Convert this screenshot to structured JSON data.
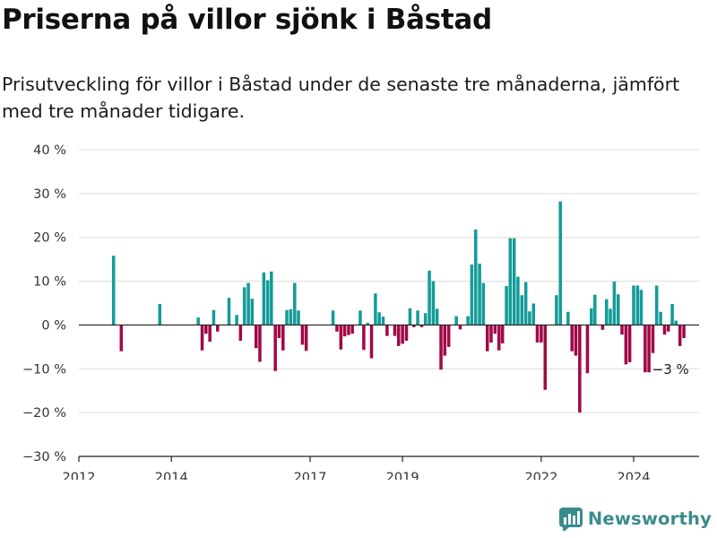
{
  "header": {
    "title": "Priserna på villor sjönk i Båstad",
    "subtitle": "Prisutveckling för villor i Båstad under de senaste tre månaderna, jämfört med tre månader tidigare."
  },
  "footer": {
    "brand": "Newsworthy"
  },
  "colors": {
    "positive": "#139c98",
    "negative": "#a10946",
    "grid": "#dcdcdc",
    "axis": "#222222",
    "text": "#333333"
  },
  "chart_data": {
    "type": "bar",
    "x_type": "date",
    "ylim": [
      -30,
      40
    ],
    "yticks": [
      40,
      30,
      20,
      10,
      0,
      -10,
      -20,
      -30
    ],
    "ytick_labels": [
      "40 %",
      "30 %",
      "20 %",
      "10 %",
      "0 %",
      "−10 %",
      "−20 %",
      "−30 %"
    ],
    "xticks": [
      "2012-01-01",
      "2014-01-01",
      "2017-01-01",
      "2019-01-01",
      "2022-01-01",
      "2024-01-01"
    ],
    "xtick_labels": [
      "2012",
      "2014",
      "2017",
      "2019",
      "2022",
      "2024"
    ],
    "xlim": [
      "2012-01-01",
      "2025-06-01"
    ],
    "grid": true,
    "annotation": {
      "label": "−3 %",
      "x": "2024-10-01",
      "y": -3
    },
    "series": [
      {
        "values": [
          [
            "2012-10-01",
            15.8
          ],
          [
            "2012-12-01",
            -6
          ],
          [
            "2013-10-01",
            4.8
          ],
          [
            "2014-08-01",
            1.7
          ],
          [
            "2014-09-01",
            -5.8
          ],
          [
            "2014-10-01",
            -2
          ],
          [
            "2014-11-01",
            -3.8
          ],
          [
            "2014-12-01",
            3.4
          ],
          [
            "2015-01-01",
            -1.5
          ],
          [
            "2015-04-01",
            6.2
          ],
          [
            "2015-06-01",
            2.3
          ],
          [
            "2015-07-01",
            -3.6
          ],
          [
            "2015-08-01",
            8.6
          ],
          [
            "2015-09-01",
            9.6
          ],
          [
            "2015-10-01",
            6
          ],
          [
            "2015-11-01",
            -5.3
          ],
          [
            "2015-12-01",
            -8.4
          ],
          [
            "2016-01-01",
            12
          ],
          [
            "2016-02-01",
            10.2
          ],
          [
            "2016-03-01",
            12.2
          ],
          [
            "2016-04-01",
            -10.5
          ],
          [
            "2016-05-01",
            -3
          ],
          [
            "2016-06-01",
            -5.8
          ],
          [
            "2016-07-01",
            3.4
          ],
          [
            "2016-08-01",
            3.6
          ],
          [
            "2016-09-01",
            9.6
          ],
          [
            "2016-10-01",
            3.3
          ],
          [
            "2016-11-01",
            -4.5
          ],
          [
            "2016-12-01",
            -5.9
          ],
          [
            "2017-07-01",
            3.3
          ],
          [
            "2017-08-01",
            -1.5
          ],
          [
            "2017-09-01",
            -5.6
          ],
          [
            "2017-10-01",
            -2.6
          ],
          [
            "2017-11-01",
            -2.3
          ],
          [
            "2017-12-01",
            -2
          ],
          [
            "2018-02-01",
            3.3
          ],
          [
            "2018-03-01",
            -5.7
          ],
          [
            "2018-04-01",
            0.5
          ],
          [
            "2018-05-01",
            -7.6
          ],
          [
            "2018-06-01",
            7.2
          ],
          [
            "2018-07-01",
            2.9
          ],
          [
            "2018-08-01",
            1.9
          ],
          [
            "2018-09-01",
            -2.5
          ],
          [
            "2018-11-01",
            -2.5
          ],
          [
            "2018-12-01",
            -4.8
          ],
          [
            "2019-01-01",
            -4.3
          ],
          [
            "2019-02-01",
            -3.6
          ],
          [
            "2019-03-01",
            3.8
          ],
          [
            "2019-04-01",
            -0.5
          ],
          [
            "2019-05-01",
            3.3
          ],
          [
            "2019-06-01",
            -0.5
          ],
          [
            "2019-07-01",
            2.7
          ],
          [
            "2019-08-01",
            12.4
          ],
          [
            "2019-09-01",
            10
          ],
          [
            "2019-10-01",
            3.7
          ],
          [
            "2019-11-01",
            -10.2
          ],
          [
            "2019-12-01",
            -7
          ],
          [
            "2020-01-01",
            -5
          ],
          [
            "2020-03-01",
            2
          ],
          [
            "2020-04-01",
            -1
          ],
          [
            "2020-06-01",
            2
          ],
          [
            "2020-07-01",
            13.8
          ],
          [
            "2020-08-01",
            21.8
          ],
          [
            "2020-09-01",
            14
          ],
          [
            "2020-10-01",
            9.6
          ],
          [
            "2020-11-01",
            -6
          ],
          [
            "2020-12-01",
            -4
          ],
          [
            "2021-01-01",
            -2
          ],
          [
            "2021-02-01",
            -5.8
          ],
          [
            "2021-03-01",
            -4.2
          ],
          [
            "2021-04-01",
            8.9
          ],
          [
            "2021-05-01",
            19.8
          ],
          [
            "2021-06-01",
            19.8
          ],
          [
            "2021-07-01",
            11
          ],
          [
            "2021-08-01",
            6.8
          ],
          [
            "2021-09-01",
            9.8
          ],
          [
            "2021-10-01",
            3.1
          ],
          [
            "2021-11-01",
            4.9
          ],
          [
            "2021-12-01",
            -4
          ],
          [
            "2022-01-01",
            -4
          ],
          [
            "2022-02-01",
            -14.8
          ],
          [
            "2022-05-01",
            6.8
          ],
          [
            "2022-06-01",
            28.2
          ],
          [
            "2022-08-01",
            3
          ],
          [
            "2022-09-01",
            -6
          ],
          [
            "2022-10-01",
            -7
          ],
          [
            "2022-11-01",
            -20
          ],
          [
            "2023-01-01",
            -11
          ],
          [
            "2023-02-01",
            3.8
          ],
          [
            "2023-03-01",
            6.9
          ],
          [
            "2023-05-01",
            -1.1
          ],
          [
            "2023-06-01",
            5.9
          ],
          [
            "2023-07-01",
            3.7
          ],
          [
            "2023-08-01",
            9.9
          ],
          [
            "2023-09-01",
            7
          ],
          [
            "2023-10-01",
            -2.2
          ],
          [
            "2023-11-01",
            -9
          ],
          [
            "2023-12-01",
            -8.5
          ],
          [
            "2024-01-01",
            9
          ],
          [
            "2024-02-01",
            9
          ],
          [
            "2024-03-01",
            8
          ],
          [
            "2024-04-01",
            -10.8
          ],
          [
            "2024-05-01",
            -10.8
          ],
          [
            "2024-06-01",
            -6.4
          ],
          [
            "2024-07-01",
            9
          ],
          [
            "2024-08-01",
            3
          ],
          [
            "2024-09-01",
            -2.2
          ],
          [
            "2024-10-01",
            -1.5
          ],
          [
            "2024-11-01",
            4.8
          ],
          [
            "2024-12-01",
            1
          ],
          [
            "2025-01-01",
            -4.8
          ],
          [
            "2025-02-01",
            -3
          ]
        ]
      }
    ]
  }
}
